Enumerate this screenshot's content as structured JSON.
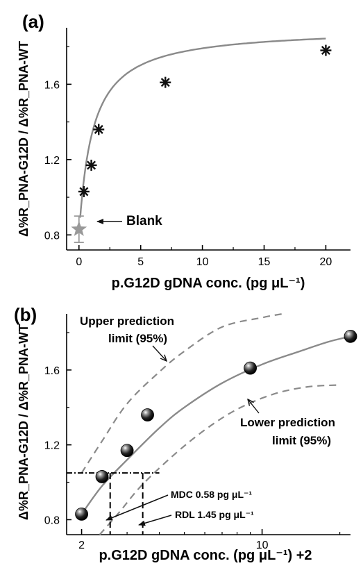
{
  "chart_data": [
    {
      "type": "scatter",
      "panel_label": "(a)",
      "xlabel": "p.G12D gDNA conc. (pg μL⁻¹)",
      "ylabel": "Δ%R_PNA-G12D / Δ%R_PNA-WT",
      "xlim": [
        -1,
        22
      ],
      "ylim": [
        0.72,
        1.9
      ],
      "xticks": [
        "0",
        "5",
        "10",
        "15",
        "20"
      ],
      "yticks": [
        "0.8",
        "1.2",
        "1.6"
      ],
      "grid": false,
      "series": [
        {
          "marker": "asterisk",
          "color": "#111111",
          "x": [
            0.4,
            1.0,
            1.6,
            7.0,
            20.0
          ],
          "y": [
            1.03,
            1.17,
            1.36,
            1.61,
            1.78
          ]
        },
        {
          "marker": "star",
          "color": "#999999",
          "x": [
            0.0
          ],
          "y": [
            0.83
          ],
          "yerr": [
            0.07
          ]
        }
      ],
      "fit": {
        "color": "#8a8a8a",
        "x_range": [
          0.1,
          20
        ],
        "vmax": 1.9,
        "k": 1.1,
        "y0": 0.8
      },
      "annotations": [
        {
          "text": "Blank",
          "anchor": "blank-point",
          "arrow": true
        }
      ]
    },
    {
      "type": "scatter",
      "panel_label": "(b)",
      "xlabel": "p.G12D gDNA conc. (pg μL⁻¹) +2",
      "ylabel": "Δ%R_PNA-G12D / Δ%R_PNA-WT",
      "xscale": "log",
      "xlim": [
        1.75,
        22
      ],
      "ylim": [
        0.72,
        1.9
      ],
      "xticks": [
        "2",
        "10"
      ],
      "yticks": [
        "0.8",
        "1.2",
        "1.6"
      ],
      "grid": false,
      "series": [
        {
          "marker": "sphere",
          "color": "#111111",
          "x": [
            2.0,
            2.4,
            3.0,
            3.6,
            9.0,
            22.0
          ],
          "y": [
            0.83,
            1.03,
            1.17,
            1.36,
            1.61,
            1.78
          ]
        }
      ],
      "fit_curves": [
        {
          "role": "fit",
          "style": "solid",
          "color": "#8a8a8a",
          "x": [
            2.0,
            2.4,
            3.0,
            4.0,
            5.0,
            7.0,
            10.0,
            14.0,
            18.0,
            22.0
          ],
          "y": [
            0.83,
            0.98,
            1.12,
            1.29,
            1.4,
            1.53,
            1.63,
            1.7,
            1.75,
            1.78
          ]
        },
        {
          "role": "upper",
          "style": "dashed",
          "color": "#8a8a8a",
          "x": [
            2.0,
            2.4,
            3.0,
            4.0,
            5.0,
            7.0,
            10.0,
            12.0
          ],
          "y": [
            1.05,
            1.22,
            1.42,
            1.59,
            1.7,
            1.83,
            1.88,
            1.9
          ]
        },
        {
          "role": "lower",
          "style": "dashed",
          "color": "#8a8a8a",
          "x": [
            2.35,
            2.8,
            3.4,
            4.5,
            6.0,
            8.0,
            11.0,
            15.0,
            20.0
          ],
          "y": [
            0.72,
            0.84,
            0.98,
            1.14,
            1.28,
            1.39,
            1.47,
            1.51,
            1.52
          ]
        }
      ],
      "reference_lines": [
        {
          "style": "dash-dot",
          "axis": "y",
          "value": 1.05,
          "x_to": 4.0
        },
        {
          "style": "dashed",
          "axis": "x",
          "value": 2.58,
          "y_to": 1.05
        },
        {
          "style": "dashed",
          "axis": "x",
          "value": 3.45,
          "y_to": 1.05
        }
      ],
      "annotations": [
        {
          "text": "Upper prediction limit (95%)"
        },
        {
          "text": "Lower prediction limit (95%)"
        },
        {
          "text": "MDC 0.58 pg μL⁻¹"
        },
        {
          "text": "RDL 1.45 pg μL⁻¹"
        }
      ]
    }
  ]
}
